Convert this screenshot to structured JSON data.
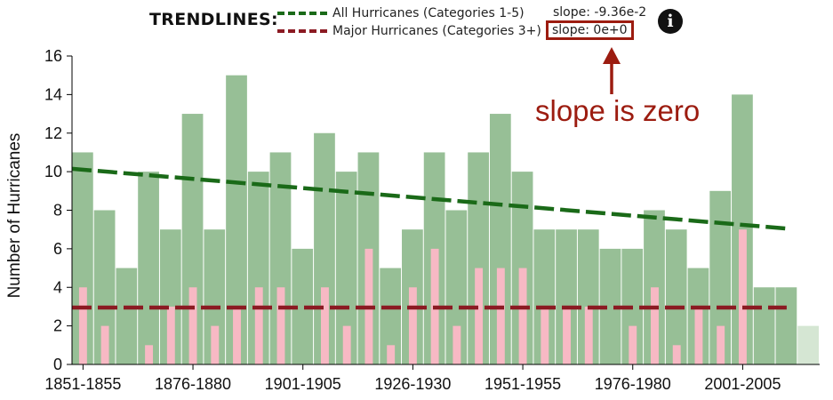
{
  "legend": {
    "heading": "TRENDLINES:",
    "entries": [
      {
        "label": "All Hurricanes (Categories 1-5)",
        "slope": "slope: -9.36e-2",
        "color": "#1a6a18"
      },
      {
        "label": "Major Hurricanes (Categories 3+)",
        "slope": "slope: 0e+0",
        "color": "#8b1a22"
      }
    ],
    "info_icon": "info-icon"
  },
  "annotation": {
    "text": "slope is zero",
    "color": "#9c1c10"
  },
  "chart_data": {
    "type": "bar",
    "title": "",
    "xlabel": "",
    "ylabel": "Number of Hurricanes",
    "ylim": [
      0,
      16
    ],
    "yticks": [
      "0",
      "2",
      "4",
      "6",
      "8",
      "10",
      "12",
      "14",
      "16"
    ],
    "xtick_labels": [
      "1851-1855",
      "1876-1880",
      "1901-1905",
      "1926-1930",
      "1951-1955",
      "1976-1980",
      "2001-2005"
    ],
    "xtick_category_index": [
      0,
      5,
      10,
      15,
      20,
      25,
      30
    ],
    "categories": [
      "1851-1855",
      "1856-1860",
      "1861-1865",
      "1866-1870",
      "1871-1875",
      "1876-1880",
      "1881-1885",
      "1886-1890",
      "1891-1895",
      "1896-1900",
      "1901-1905",
      "1906-1910",
      "1911-1915",
      "1916-1920",
      "1921-1925",
      "1926-1930",
      "1931-1935",
      "1936-1940",
      "1941-1945",
      "1946-1950",
      "1951-1955",
      "1956-1960",
      "1961-1965",
      "1966-1970",
      "1971-1975",
      "1976-1980",
      "1981-1985",
      "1986-1990",
      "1991-1995",
      "1996-2000",
      "2001-2005",
      "2006-2010",
      "2011-2015",
      "2016-2020"
    ],
    "series": [
      {
        "name": "All Hurricanes (Categories 1-5)",
        "color": "#97bf96",
        "values": [
          11,
          8,
          5,
          10,
          7,
          13,
          7,
          15,
          10,
          11,
          6,
          12,
          10,
          11,
          5,
          7,
          11,
          8,
          11,
          13,
          10,
          7,
          7,
          7,
          6,
          6,
          8,
          7,
          5,
          9,
          14,
          4,
          4,
          2
        ]
      },
      {
        "name": "Major Hurricanes (Categories 3+)",
        "color": "#f7b9c4",
        "values": [
          4,
          2,
          0,
          1,
          3,
          4,
          2,
          3,
          4,
          4,
          0,
          4,
          2,
          6,
          1,
          4,
          6,
          2,
          5,
          5,
          5,
          3,
          3,
          3,
          0,
          2,
          4,
          1,
          3,
          2,
          7,
          0,
          0,
          0
        ]
      }
    ],
    "partial_last_period": {
      "category": "2016-2020",
      "color": "#d5e6d3"
    },
    "trendlines": [
      {
        "name": "All Hurricanes (Categories 1-5)",
        "start": 10.15,
        "end": 7.05,
        "color": "#1a6a18"
      },
      {
        "name": "Major Hurricanes (Categories 3+)",
        "start": 2.95,
        "end": 2.95,
        "color": "#8b1a22"
      }
    ]
  }
}
